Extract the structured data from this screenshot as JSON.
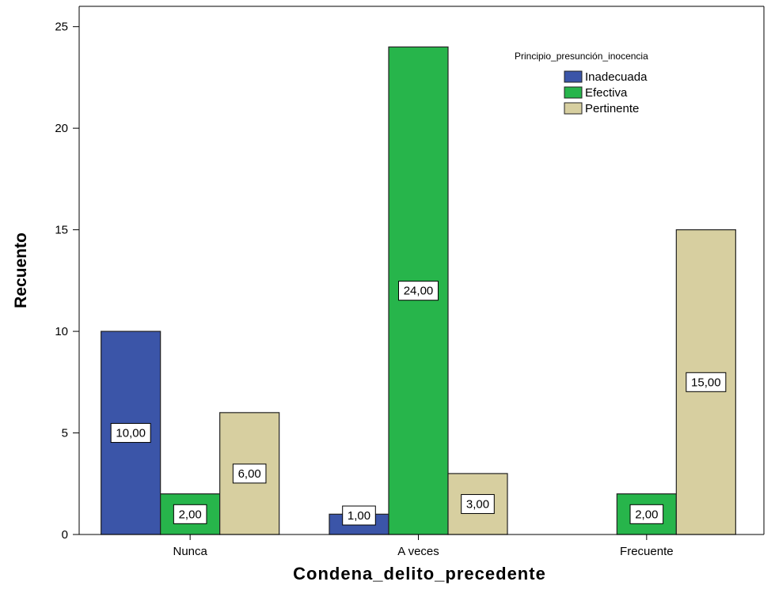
{
  "chart_data": {
    "type": "bar",
    "xlabel": "Condena_delito_precedente",
    "ylabel": "Recuento",
    "categories": [
      "Nunca",
      "A veces",
      "Frecuente"
    ],
    "ylim": [
      0,
      26
    ],
    "yticks": [
      0,
      5,
      10,
      15,
      20,
      25
    ],
    "grid": false,
    "legend": {
      "title": "Principio_presunción_inocencia",
      "placement": "top-right"
    },
    "series": [
      {
        "name": "Inadecuada",
        "color": "#3b55a8",
        "values": [
          10,
          1,
          null
        ],
        "labels": [
          "10,00",
          "1,00",
          ""
        ]
      },
      {
        "name": "Efectiva",
        "color": "#27b54b",
        "values": [
          2,
          24,
          2
        ],
        "labels": [
          "2,00",
          "24,00",
          "2,00"
        ]
      },
      {
        "name": "Pertinente",
        "color": "#d7cfa0",
        "values": [
          6,
          3,
          15
        ],
        "labels": [
          "6,00",
          "3,00",
          "15,00"
        ]
      }
    ]
  }
}
